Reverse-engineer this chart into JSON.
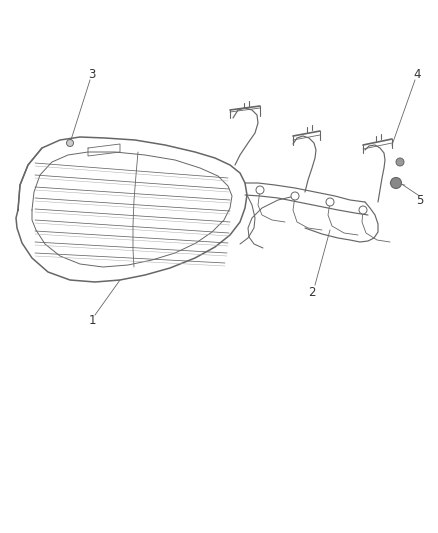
{
  "background_color": "#ffffff",
  "line_color": "#666666",
  "label_color": "#333333",
  "lw_main": 1.1,
  "lw_thin": 0.7,
  "lw_slat": 0.6,
  "font_size": 8.5
}
